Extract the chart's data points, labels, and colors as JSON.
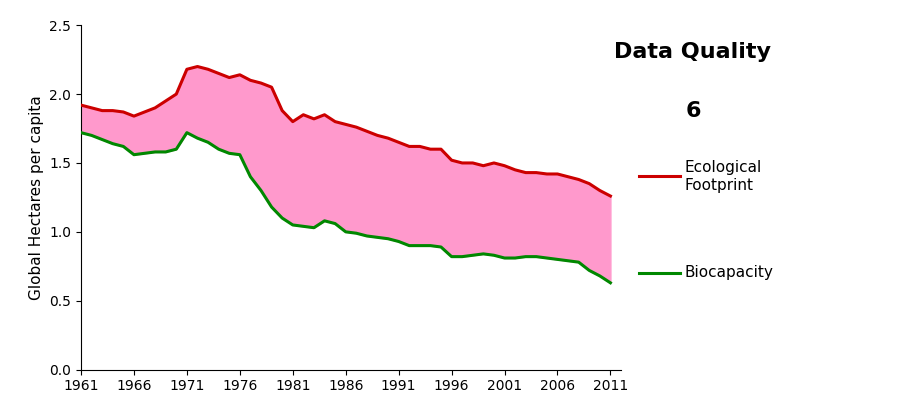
{
  "years": [
    1961,
    1962,
    1963,
    1964,
    1965,
    1966,
    1967,
    1968,
    1969,
    1970,
    1971,
    1972,
    1973,
    1974,
    1975,
    1976,
    1977,
    1978,
    1979,
    1980,
    1981,
    1982,
    1983,
    1984,
    1985,
    1986,
    1987,
    1988,
    1989,
    1990,
    1991,
    1992,
    1993,
    1994,
    1995,
    1996,
    1997,
    1998,
    1999,
    2000,
    2001,
    2002,
    2003,
    2004,
    2005,
    2006,
    2007,
    2008,
    2009,
    2010,
    2011
  ],
  "ecological_footprint": [
    1.92,
    1.9,
    1.88,
    1.88,
    1.87,
    1.84,
    1.87,
    1.9,
    1.95,
    2.0,
    2.18,
    2.2,
    2.18,
    2.15,
    2.12,
    2.14,
    2.1,
    2.08,
    2.05,
    1.88,
    1.8,
    1.85,
    1.82,
    1.85,
    1.8,
    1.78,
    1.76,
    1.73,
    1.7,
    1.68,
    1.65,
    1.62,
    1.62,
    1.6,
    1.6,
    1.52,
    1.5,
    1.5,
    1.48,
    1.5,
    1.48,
    1.45,
    1.43,
    1.43,
    1.42,
    1.42,
    1.4,
    1.38,
    1.35,
    1.3,
    1.26
  ],
  "biocapacity": [
    1.72,
    1.7,
    1.67,
    1.64,
    1.62,
    1.56,
    1.57,
    1.58,
    1.58,
    1.6,
    1.72,
    1.68,
    1.65,
    1.6,
    1.57,
    1.56,
    1.4,
    1.3,
    1.18,
    1.1,
    1.05,
    1.04,
    1.03,
    1.08,
    1.06,
    1.0,
    0.99,
    0.97,
    0.96,
    0.95,
    0.93,
    0.9,
    0.9,
    0.9,
    0.89,
    0.82,
    0.82,
    0.83,
    0.84,
    0.83,
    0.81,
    0.81,
    0.82,
    0.82,
    0.81,
    0.8,
    0.79,
    0.78,
    0.72,
    0.68,
    0.63
  ],
  "ef_color": "#cc0000",
  "bio_color": "#008800",
  "fill_color": "#ff99cc",
  "ylabel": "Global Hectares per capita",
  "ylim": [
    0.0,
    2.5
  ],
  "yticks": [
    0.0,
    0.5,
    1.0,
    1.5,
    2.0,
    2.5
  ],
  "xtick_labels": [
    "1961",
    "1966",
    "1971",
    "1976",
    "1981",
    "1986",
    "1991",
    "1996",
    "2001",
    "2006",
    "2011"
  ],
  "xtick_years": [
    1961,
    1966,
    1971,
    1976,
    1981,
    1986,
    1991,
    1996,
    2001,
    2006,
    2011
  ],
  "legend_ef": "Ecological\nFootprint",
  "legend_bio": "Biocapacity",
  "title_line1": "Data Quality",
  "title_line2": "6",
  "title_fontsize": 16,
  "label_fontsize": 11,
  "tick_fontsize": 10,
  "line_width": 2.2
}
